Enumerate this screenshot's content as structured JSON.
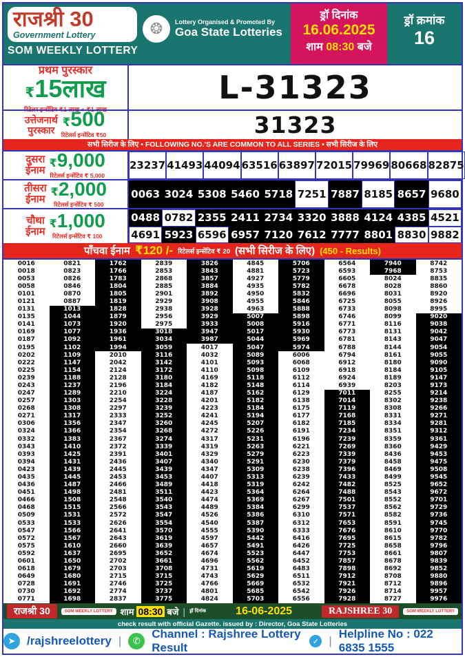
{
  "colors": {
    "teal": "#1a756e",
    "pink": "#d4155e",
    "yellow": "#ffe000",
    "green": "#0f9d4d",
    "red": "#e2302a",
    "bar_red": "#e6251d",
    "border_blue": "#3434bd",
    "footer_green": "#1d4e2a",
    "contact_blue": "#1358b8",
    "black_cell": "#000000"
  },
  "header": {
    "brand": "राजश्री 30",
    "brand_sub": "Government Lottery",
    "weekly": "SOM WEEKLY LOTTERY",
    "emblem_glyph": "❂",
    "organised_by": "Lottery Organised & Promoted By",
    "organiser": "Goa State Lotteries",
    "draw_date_label": "ड्रॉ दिनांक",
    "draw_date": "16.06.2025",
    "time_prefix": "शाम",
    "time": "08:30",
    "time_suffix": "बजे",
    "draw_no_label": "ड्रॉ क्रमांक",
    "draw_no": "16"
  },
  "first_prize": {
    "title": "प्रथम पुरस्कार",
    "rupee": "₹",
    "amount": "15",
    "unit": "लाख",
    "incentive": "रिटेलर इन्सेंटिव ₹1 लाख + ₹1 लाख",
    "number": "L-31323"
  },
  "consolation": {
    "name_l1": "उत्तेजनार्थ",
    "name_l2": "पुरस्कार",
    "rupee": "₹",
    "amount": "500",
    "incentive": "रिटेलर्स इन्सेंटिव ₹50",
    "number": "31323"
  },
  "common_bar": "सभी सिरीज के लिए  •  FOLLOWING NO.'S ARE COMMON TO ALL SERIES  •  सभी सिरीज के लिए",
  "second_prize": {
    "name_l1": "दुसरा",
    "name_l2": "ईनाम",
    "rupee": "₹",
    "amount": "9,000",
    "incentive": "रिटेलर्स इन्सेंटिव ₹ 5,000",
    "numbers": [
      "23237",
      "41493",
      "44094",
      "63516",
      "63897",
      "72015",
      "79969",
      "80668",
      "82875",
      "99471"
    ],
    "black": [
      0,
      0,
      0,
      0,
      0,
      0,
      0,
      0,
      0,
      0
    ]
  },
  "third_prize": {
    "name_l1": "तीसरा",
    "name_l2": "ईनाम",
    "rupee": "₹",
    "amount": "2,000",
    "incentive": "रिटेलर्स इन्सेंटिव ₹ 500",
    "numbers": [
      "0063",
      "3024",
      "5308",
      "5460",
      "5718",
      "7251",
      "7887",
      "8185",
      "8657",
      "9680"
    ],
    "black": [
      1,
      1,
      1,
      1,
      1,
      0,
      1,
      0,
      1,
      0
    ]
  },
  "fourth_prize": {
    "name_l1": "चौथा",
    "name_l2": "ईनाम",
    "rupee": "₹",
    "amount": "1,000",
    "incentive": "रिटेलर्स इन्सेंटिव ₹ 100",
    "rows": [
      [
        "0488",
        "0782",
        "2355",
        "2411",
        "2734",
        "3320",
        "3888",
        "4124",
        "4385",
        "4521"
      ],
      [
        "4691",
        "5923",
        "6596",
        "6957",
        "7120",
        "7612",
        "7777",
        "8801",
        "8830",
        "9882"
      ]
    ],
    "black": [
      [
        1,
        0,
        1,
        1,
        1,
        1,
        1,
        1,
        1,
        0
      ],
      [
        0,
        1,
        0,
        1,
        1,
        1,
        1,
        1,
        0,
        0
      ]
    ]
  },
  "fifth_prize": {
    "label": "पाँचवा ईनाम",
    "amount": "₹120 /-",
    "incentive": "रिटेलर्स इन्सेंटिव ₹ 20",
    "series": "(सभी सिरीज के लिए)",
    "count": "(450 - Results)"
  },
  "results": {
    "black_ranges": [
      null,
      [
        7,
        45
      ],
      [
        1,
        12
      ],
      [
        10,
        45
      ],
      [
        1,
        11
      ],
      [
        8,
        45
      ],
      [
        1,
        12
      ],
      [
        18,
        45
      ],
      [
        1,
        2
      ],
      [
        8,
        45
      ]
    ],
    "numbers": [
      [
        "0016",
        "0821",
        "1762",
        "2839",
        "3826",
        "4845",
        "5706",
        "6564",
        "7940",
        "8742"
      ],
      [
        "0018",
        "0823",
        "1766",
        "2853",
        "3843",
        "4881",
        "5723",
        "6593",
        "7968",
        "8753"
      ],
      [
        "0053",
        "0826",
        "1783",
        "2868",
        "3857",
        "4927",
        "5779",
        "6605",
        "8024",
        "8835"
      ],
      [
        "0058",
        "0846",
        "1804",
        "2885",
        "3884",
        "4935",
        "5782",
        "6678",
        "8028",
        "8860"
      ],
      [
        "0101",
        "0870",
        "1805",
        "2901",
        "3892",
        "4950",
        "5832",
        "6696",
        "8031",
        "8920"
      ],
      [
        "0121",
        "0887",
        "1819",
        "2929",
        "3908",
        "4955",
        "5846",
        "6725",
        "8055",
        "8926"
      ],
      [
        "0131",
        "1013",
        "1828",
        "2938",
        "3928",
        "4963",
        "5888",
        "6733",
        "8098",
        "8995"
      ],
      [
        "0135",
        "1044",
        "1879",
        "2956",
        "3929",
        "5007",
        "5898",
        "6746",
        "8099",
        "9020"
      ],
      [
        "0141",
        "1073",
        "1920",
        "2975",
        "3933",
        "5008",
        "5916",
        "6771",
        "8116",
        "9038"
      ],
      [
        "0169",
        "1077",
        "1936",
        "3018",
        "3947",
        "5017",
        "5930",
        "6773",
        "8131",
        "9042"
      ],
      [
        "0187",
        "1092",
        "1961",
        "3034",
        "3987",
        "5044",
        "5969",
        "6781",
        "8143",
        "9047"
      ],
      [
        "0195",
        "1102",
        "1994",
        "3059",
        "4017",
        "5047",
        "5974",
        "6788",
        "8144",
        "9054"
      ],
      [
        "0202",
        "1109",
        "2010",
        "3116",
        "4032",
        "5089",
        "6006",
        "6794",
        "8161",
        "9055"
      ],
      [
        "0222",
        "1147",
        "2042",
        "3142",
        "4101",
        "5093",
        "6068",
        "6912",
        "8180",
        "9090"
      ],
      [
        "0225",
        "1154",
        "2124",
        "3172",
        "4110",
        "5098",
        "6109",
        "6918",
        "8184",
        "9105"
      ],
      [
        "0239",
        "1188",
        "2128",
        "3180",
        "4169",
        "5118",
        "6112",
        "6924",
        "8189",
        "9147"
      ],
      [
        "0243",
        "1237",
        "2196",
        "3184",
        "4182",
        "5148",
        "6114",
        "6939",
        "8203",
        "9173"
      ],
      [
        "0247",
        "1289",
        "2210",
        "3224",
        "4187",
        "5162",
        "6129",
        "7011",
        "8255",
        "9214"
      ],
      [
        "0257",
        "1303",
        "2254",
        "3228",
        "4201",
        "5182",
        "6138",
        "7014",
        "8302",
        "9238"
      ],
      [
        "0268",
        "1308",
        "2297",
        "3239",
        "4223",
        "5184",
        "6175",
        "7119",
        "8308",
        "9266"
      ],
      [
        "0271",
        "1317",
        "2333",
        "3252",
        "4241",
        "5194",
        "6177",
        "7168",
        "8331",
        "9271"
      ],
      [
        "0306",
        "1356",
        "2347",
        "3260",
        "4245",
        "5207",
        "6182",
        "7185",
        "8334",
        "9281"
      ],
      [
        "0324",
        "1366",
        "2354",
        "3268",
        "4272",
        "5226",
        "6191",
        "7234",
        "8351",
        "9312"
      ],
      [
        "0332",
        "1383",
        "2367",
        "3274",
        "4317",
        "5231",
        "6196",
        "7239",
        "8359",
        "9361"
      ],
      [
        "0343",
        "1410",
        "2372",
        "3339",
        "4319",
        "5263",
        "6221",
        "7269",
        "8360",
        "9429"
      ],
      [
        "0393",
        "1425",
        "2391",
        "3401",
        "4329",
        "5279",
        "6223",
        "7339",
        "8436",
        "9453"
      ],
      [
        "0394",
        "1431",
        "2436",
        "3407",
        "4340",
        "5291",
        "6230",
        "7379",
        "8458",
        "9475"
      ],
      [
        "0423",
        "1439",
        "2445",
        "3439",
        "4347",
        "5309",
        "6238",
        "7396",
        "8469",
        "9508"
      ],
      [
        "0435",
        "1445",
        "2453",
        "3453",
        "4407",
        "5313",
        "6239",
        "7433",
        "8499",
        "9545"
      ],
      [
        "0436",
        "1487",
        "2466",
        "3489",
        "4418",
        "5319",
        "6242",
        "7482",
        "8525",
        "9652"
      ],
      [
        "0451",
        "1498",
        "2481",
        "3511",
        "4423",
        "5364",
        "6264",
        "7488",
        "8543",
        "9672"
      ],
      [
        "0466",
        "1508",
        "2548",
        "3540",
        "4474",
        "5369",
        "6267",
        "7501",
        "8552",
        "9701"
      ],
      [
        "0468",
        "1515",
        "2566",
        "3543",
        "4489",
        "5384",
        "6299",
        "7537",
        "8562",
        "9729"
      ],
      [
        "0509",
        "1531",
        "2572",
        "3547",
        "4526",
        "5386",
        "6310",
        "7571",
        "8582",
        "9736"
      ],
      [
        "0533",
        "1533",
        "2626",
        "3554",
        "4540",
        "5387",
        "6312",
        "7653",
        "8591",
        "9745"
      ],
      [
        "0547",
        "1566",
        "2641",
        "3570",
        "4555",
        "5390",
        "6333",
        "7676",
        "8610",
        "9770"
      ],
      [
        "0572",
        "1567",
        "2643",
        "3619",
        "4597",
        "5442",
        "6416",
        "7695",
        "8615",
        "9782"
      ],
      [
        "0575",
        "1610",
        "2660",
        "3639",
        "4657",
        "5491",
        "6426",
        "7725",
        "8658",
        "9796"
      ],
      [
        "0592",
        "1637",
        "2695",
        "3652",
        "4674",
        "5523",
        "6447",
        "7753",
        "8661",
        "9807"
      ],
      [
        "0601",
        "1650",
        "2702",
        "3661",
        "4696",
        "5562",
        "6452",
        "7857",
        "8678",
        "9839"
      ],
      [
        "0618",
        "1679",
        "2703",
        "3708",
        "4731",
        "5619",
        "6483",
        "7898",
        "8692",
        "9852"
      ],
      [
        "0649",
        "1680",
        "2715",
        "3715",
        "4743",
        "5629",
        "6511",
        "7912",
        "8708",
        "9880"
      ],
      [
        "0728",
        "1691",
        "2746",
        "3725",
        "4766",
        "5669",
        "6532",
        "7921",
        "8712",
        "9896"
      ],
      [
        "0730",
        "1692",
        "2774",
        "3737",
        "4801",
        "5685",
        "6542",
        "7926",
        "8714",
        "9957"
      ],
      [
        "0771",
        "1698",
        "2837",
        "3775",
        "4824",
        "5703",
        "6556",
        "7928",
        "8727",
        "9976"
      ]
    ]
  },
  "footer": {
    "brand_hi": "राजश्री 30",
    "weekly_l": "SOM WEEKLY LOTTERY",
    "time_prefix": "शाम",
    "time": "08:30",
    "time_suffix": "बजे",
    "draw_label": "ड्रॉ दिनांक",
    "date": "16-06-2025",
    "brand_en": "RAJSHREE 30",
    "weekly_r": "SOM WEEKLY LOTTERY",
    "gazette": "check result with official Gazette. issued by : Director, Goa State Lotteries"
  },
  "contact": {
    "telegram": "/rajshreelottery",
    "channel": "Channel : Rajshree Lottery Result",
    "helpline": "Helpline No : 022 6835 1555"
  }
}
